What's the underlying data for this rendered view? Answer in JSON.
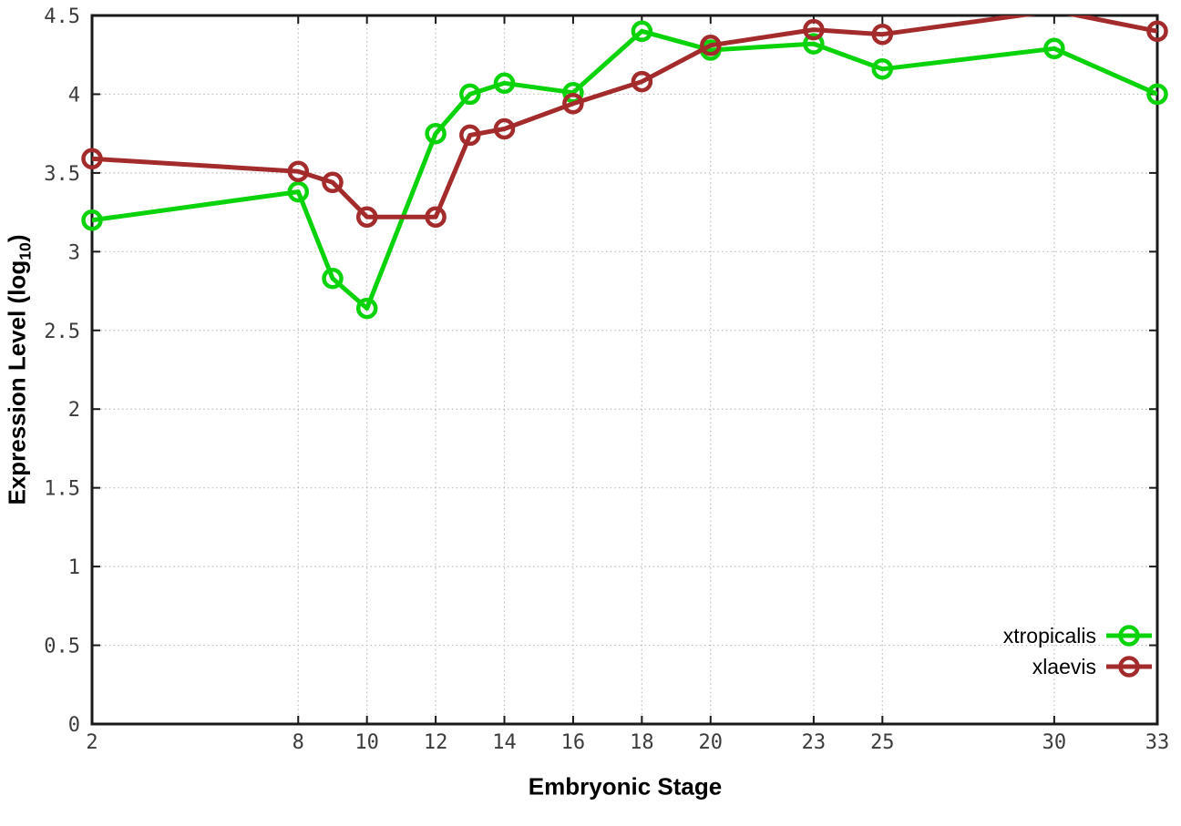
{
  "page": {
    "background": "#ffffff"
  },
  "chart_data": {
    "type": "line",
    "title": "",
    "xlabel": "Embryonic Stage",
    "ylabel": "Expression Level (log10)",
    "ylabel_parts": {
      "prefix": "Expression Level (log",
      "sub": "10",
      "suffix": ")"
    },
    "x": [
      2,
      8,
      9,
      10,
      12,
      13,
      14,
      16,
      18,
      20,
      23,
      25,
      30,
      33
    ],
    "xticks": [
      2,
      8,
      10,
      12,
      14,
      16,
      18,
      20,
      23,
      25,
      30,
      33
    ],
    "yticks": [
      0,
      0.5,
      1,
      1.5,
      2,
      2.5,
      3,
      3.5,
      4,
      4.5
    ],
    "xlim": [
      2,
      33
    ],
    "ylim": [
      0,
      4.5
    ],
    "grid": true,
    "legend_position": "bottom-right",
    "series": [
      {
        "name": "xtropicalis",
        "color": "#0bd30b",
        "marker": "open-circle",
        "values": [
          3.2,
          3.38,
          2.83,
          2.64,
          3.75,
          4.0,
          4.07,
          4.01,
          4.4,
          4.28,
          4.32,
          4.16,
          4.29,
          4.0
        ]
      },
      {
        "name": "xlaevis",
        "color": "#a32b2b",
        "marker": "open-circle",
        "values": [
          3.59,
          3.51,
          3.44,
          3.22,
          3.22,
          3.74,
          3.78,
          3.94,
          4.08,
          4.31,
          4.41,
          4.38,
          4.53,
          4.4
        ]
      }
    ],
    "colors": {
      "grid": "#bcbcbc",
      "axis": "#1a1a1a",
      "tick_text": "#3c3c3c",
      "label_text": "#000000"
    }
  }
}
